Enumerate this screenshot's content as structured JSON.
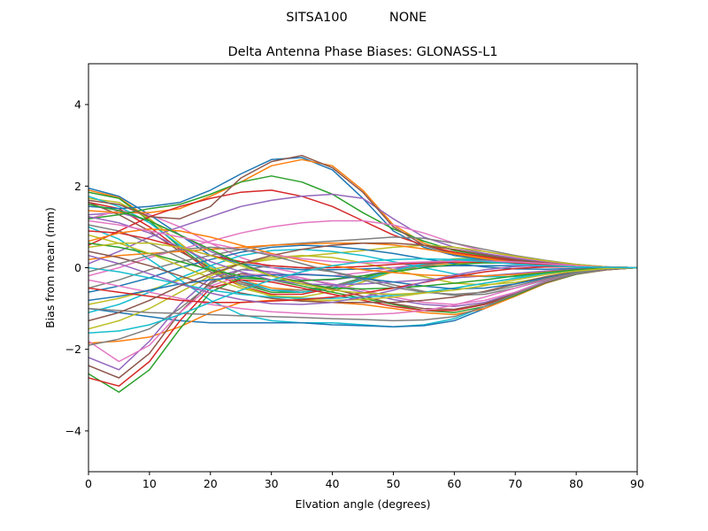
{
  "figure": {
    "suptitle_left": "SITSA100",
    "suptitle_right": "NONE"
  },
  "chart_data": {
    "type": "line",
    "title": "Delta Antenna Phase Biases: GLONASS-L1",
    "xlabel": "Elvation angle (degrees)",
    "ylabel": "Bias from mean (mm)",
    "xlim": [
      0,
      90
    ],
    "ylim": [
      -5,
      5
    ],
    "xticks": [
      0,
      10,
      20,
      30,
      40,
      50,
      60,
      70,
      80,
      90
    ],
    "yticks": [
      -4,
      -2,
      0,
      2,
      4
    ],
    "ytick_labels": [
      "−4",
      "−2",
      "0",
      "2",
      "4"
    ],
    "x": [
      0,
      5,
      10,
      15,
      20,
      25,
      30,
      35,
      40,
      45,
      50,
      55,
      60,
      65,
      70,
      75,
      80,
      85,
      90
    ],
    "grid": false,
    "legend": false,
    "colors": [
      "#1f77b4",
      "#ff7f0e",
      "#2ca02c",
      "#d62728",
      "#9467bd",
      "#8c564b",
      "#e377c2",
      "#7f7f7f",
      "#bcbd22",
      "#17becf"
    ],
    "series": [
      {
        "values": [
          1.95,
          1.75,
          1.3,
          0.8,
          0.3,
          0.1,
          0.0,
          -0.05,
          -0.05,
          -0.03,
          0.0,
          0.03,
          0.05,
          0.05,
          0.05,
          0.03,
          0.02,
          0.01,
          0.0
        ]
      },
      {
        "values": [
          1.9,
          1.72,
          1.2,
          0.6,
          0.05,
          -0.3,
          -0.5,
          -0.55,
          -0.45,
          -0.3,
          -0.1,
          0.05,
          0.12,
          0.14,
          0.12,
          0.08,
          0.04,
          0.01,
          0.0
        ]
      },
      {
        "values": [
          1.85,
          1.7,
          1.15,
          0.5,
          -0.05,
          -0.4,
          -0.6,
          -0.6,
          -0.45,
          -0.25,
          -0.05,
          0.1,
          0.2,
          0.22,
          0.2,
          0.13,
          0.06,
          0.02,
          0.0
        ]
      },
      {
        "values": [
          1.6,
          1.45,
          1.0,
          0.45,
          -0.1,
          -0.45,
          -0.65,
          -0.65,
          -0.5,
          -0.3,
          -0.1,
          0.1,
          0.2,
          0.22,
          0.2,
          0.14,
          0.07,
          0.02,
          0.0
        ]
      },
      {
        "values": [
          1.3,
          1.35,
          1.15,
          0.8,
          0.4,
          0.1,
          -0.15,
          -0.3,
          -0.3,
          -0.2,
          -0.05,
          0.1,
          0.18,
          0.2,
          0.18,
          0.12,
          0.06,
          0.02,
          0.0
        ]
      },
      {
        "values": [
          1.6,
          1.3,
          0.9,
          0.4,
          0.0,
          -0.35,
          -0.55,
          -0.6,
          -0.5,
          -0.3,
          -0.1,
          0.08,
          0.18,
          0.2,
          0.17,
          0.12,
          0.06,
          0.02,
          0.0
        ]
      },
      {
        "values": [
          1.2,
          1.4,
          1.3,
          1.0,
          0.6,
          0.25,
          0.0,
          -0.15,
          -0.2,
          -0.12,
          0.0,
          0.12,
          0.2,
          0.22,
          0.19,
          0.13,
          0.06,
          0.02,
          0.0
        ]
      },
      {
        "values": [
          1.05,
          0.9,
          0.6,
          0.25,
          -0.1,
          -0.4,
          -0.55,
          -0.55,
          -0.45,
          -0.28,
          -0.1,
          0.06,
          0.15,
          0.18,
          0.16,
          0.11,
          0.05,
          0.02,
          0.0
        ]
      },
      {
        "values": [
          1.7,
          1.6,
          1.2,
          0.6,
          0.0,
          -0.45,
          -0.7,
          -0.72,
          -0.58,
          -0.35,
          -0.1,
          0.1,
          0.22,
          0.25,
          0.22,
          0.15,
          0.07,
          0.02,
          0.0
        ]
      },
      {
        "values": [
          1.75,
          1.5,
          1.1,
          0.55,
          0.05,
          -0.3,
          -0.55,
          -0.6,
          -0.5,
          -0.3,
          -0.08,
          0.1,
          0.2,
          0.22,
          0.19,
          0.13,
          0.06,
          0.02,
          0.0
        ]
      },
      {
        "values": [
          1.5,
          1.45,
          1.5,
          1.6,
          1.9,
          2.3,
          2.65,
          2.7,
          2.4,
          1.7,
          0.9,
          0.5,
          0.3,
          0.2,
          0.15,
          0.1,
          0.05,
          0.02,
          0.0
        ]
      },
      {
        "values": [
          1.4,
          1.35,
          1.35,
          1.45,
          1.75,
          2.1,
          2.5,
          2.65,
          2.5,
          1.9,
          1.05,
          0.6,
          0.35,
          0.25,
          0.18,
          0.12,
          0.06,
          0.02,
          0.0
        ]
      },
      {
        "values": [
          1.2,
          1.3,
          1.45,
          1.55,
          1.8,
          2.1,
          2.25,
          2.1,
          1.8,
          1.35,
          0.95,
          0.65,
          0.42,
          0.3,
          0.2,
          0.13,
          0.06,
          0.02,
          0.0
        ]
      },
      {
        "values": [
          0.55,
          0.9,
          1.25,
          1.5,
          1.7,
          1.85,
          1.9,
          1.75,
          1.5,
          1.15,
          0.8,
          0.55,
          0.38,
          0.27,
          0.18,
          0.12,
          0.06,
          0.02,
          0.0
        ]
      },
      {
        "values": [
          0.1,
          0.4,
          0.75,
          1.0,
          1.25,
          1.5,
          1.65,
          1.75,
          1.8,
          1.7,
          1.2,
          0.75,
          0.5,
          0.35,
          0.23,
          0.15,
          0.07,
          0.02,
          0.0
        ]
      },
      {
        "values": [
          1.65,
          1.55,
          1.25,
          1.2,
          1.5,
          2.2,
          2.6,
          2.75,
          2.45,
          1.85,
          1.0,
          0.55,
          0.33,
          0.22,
          0.16,
          0.11,
          0.05,
          0.02,
          0.0
        ]
      },
      {
        "values": [
          -0.2,
          0.0,
          0.25,
          0.45,
          0.65,
          0.85,
          1.0,
          1.1,
          1.15,
          1.15,
          1.05,
          0.85,
          0.6,
          0.4,
          0.26,
          0.16,
          0.08,
          0.02,
          0.0
        ]
      },
      {
        "values": [
          -0.5,
          -0.3,
          -0.05,
          0.15,
          0.3,
          0.45,
          0.55,
          0.6,
          0.65,
          0.7,
          0.75,
          0.72,
          0.6,
          0.45,
          0.3,
          0.18,
          0.08,
          0.02,
          0.0
        ]
      },
      {
        "values": [
          -0.9,
          -0.75,
          -0.55,
          -0.3,
          -0.05,
          0.1,
          0.2,
          0.28,
          0.35,
          0.42,
          0.5,
          0.55,
          0.5,
          0.4,
          0.28,
          0.17,
          0.08,
          0.02,
          0.0
        ]
      },
      {
        "values": [
          1.0,
          0.7,
          0.2,
          -0.3,
          -0.8,
          -1.15,
          -1.3,
          -1.35,
          -1.35,
          -1.4,
          -1.45,
          -1.4,
          -1.25,
          -0.95,
          -0.6,
          -0.32,
          -0.14,
          -0.04,
          0.0
        ]
      },
      {
        "values": [
          -1.0,
          -1.1,
          -1.2,
          -1.3,
          -1.35,
          -1.35,
          -1.35,
          -1.35,
          -1.4,
          -1.42,
          -1.45,
          -1.42,
          -1.3,
          -1.0,
          -0.65,
          -0.35,
          -0.15,
          -0.04,
          0.0
        ]
      },
      {
        "values": [
          -1.85,
          -1.8,
          -1.7,
          -1.45,
          -1.1,
          -0.85,
          -0.8,
          -0.8,
          -0.85,
          -0.9,
          -1.0,
          -1.1,
          -1.15,
          -1.0,
          -0.7,
          -0.38,
          -0.16,
          -0.05,
          0.0
        ]
      },
      {
        "values": [
          -2.6,
          -3.05,
          -2.5,
          -1.5,
          -0.6,
          -0.25,
          -0.3,
          -0.45,
          -0.6,
          -0.75,
          -0.9,
          -1.05,
          -1.1,
          -0.95,
          -0.68,
          -0.37,
          -0.16,
          -0.05,
          0.0
        ]
      },
      {
        "values": [
          -2.7,
          -2.9,
          -2.3,
          -1.3,
          -0.5,
          -0.3,
          -0.35,
          -0.5,
          -0.65,
          -0.8,
          -0.95,
          -1.05,
          -1.05,
          -0.9,
          -0.65,
          -0.36,
          -0.15,
          -0.05,
          0.0
        ]
      },
      {
        "values": [
          -2.2,
          -2.5,
          -1.8,
          -0.9,
          -0.25,
          -0.05,
          -0.1,
          -0.25,
          -0.42,
          -0.6,
          -0.78,
          -0.9,
          -0.95,
          -0.85,
          -0.62,
          -0.34,
          -0.15,
          -0.04,
          0.0
        ]
      },
      {
        "values": [
          -2.4,
          -2.7,
          -2.1,
          -1.1,
          -0.35,
          -0.15,
          -0.2,
          -0.35,
          -0.52,
          -0.7,
          -0.88,
          -1.0,
          -1.02,
          -0.88,
          -0.64,
          -0.35,
          -0.15,
          -0.05,
          0.0
        ]
      },
      {
        "values": [
          -1.8,
          -2.3,
          -1.9,
          -1.1,
          -0.45,
          -0.2,
          -0.15,
          -0.25,
          -0.4,
          -0.55,
          -0.72,
          -0.85,
          -0.9,
          -0.8,
          -0.6,
          -0.33,
          -0.14,
          -0.04,
          0.0
        ]
      },
      {
        "values": [
          -1.9,
          -1.75,
          -1.5,
          -1.0,
          -0.4,
          -0.05,
          0.05,
          0.0,
          -0.1,
          -0.25,
          -0.42,
          -0.58,
          -0.68,
          -0.65,
          -0.5,
          -0.3,
          -0.13,
          -0.04,
          0.0
        ]
      },
      {
        "values": [
          -1.5,
          -1.3,
          -1.0,
          -0.6,
          -0.2,
          0.1,
          0.25,
          0.3,
          0.25,
          0.12,
          -0.05,
          -0.22,
          -0.38,
          -0.42,
          -0.36,
          -0.23,
          -0.1,
          -0.03,
          0.0
        ]
      },
      {
        "values": [
          -1.1,
          -0.9,
          -0.6,
          -0.25,
          0.05,
          0.3,
          0.42,
          0.45,
          0.4,
          0.3,
          0.15,
          0.0,
          -0.15,
          -0.22,
          -0.22,
          -0.15,
          -0.07,
          -0.02,
          0.0
        ]
      },
      {
        "values": [
          -0.6,
          -0.45,
          -0.25,
          0.0,
          0.2,
          0.38,
          0.5,
          0.55,
          0.52,
          0.45,
          0.35,
          0.22,
          0.1,
          0.02,
          -0.03,
          -0.04,
          -0.02,
          -0.01,
          0.0
        ]
      },
      {
        "values": [
          0.2,
          0.3,
          0.35,
          0.4,
          0.45,
          0.5,
          0.55,
          0.58,
          0.6,
          0.6,
          0.56,
          0.46,
          0.34,
          0.22,
          0.13,
          0.07,
          0.03,
          0.01,
          0.0
        ]
      },
      {
        "values": [
          0.6,
          0.5,
          0.35,
          0.15,
          -0.05,
          -0.2,
          -0.3,
          -0.32,
          -0.28,
          -0.2,
          -0.1,
          0.0,
          0.08,
          0.12,
          0.11,
          0.08,
          0.04,
          0.01,
          0.0
        ]
      },
      {
        "values": [
          0.9,
          0.85,
          0.7,
          0.5,
          0.3,
          0.15,
          0.05,
          0.0,
          0.0,
          0.03,
          0.08,
          0.12,
          0.14,
          0.14,
          0.12,
          0.08,
          0.04,
          0.01,
          0.0
        ]
      },
      {
        "values": [
          1.25,
          1.1,
          0.85,
          0.5,
          0.15,
          -0.1,
          -0.3,
          -0.4,
          -0.42,
          -0.4,
          -0.35,
          -0.3,
          -0.25,
          -0.2,
          -0.14,
          -0.08,
          -0.04,
          -0.01,
          0.0
        ]
      },
      {
        "values": [
          0.4,
          0.25,
          0.05,
          -0.2,
          -0.45,
          -0.62,
          -0.75,
          -0.82,
          -0.85,
          -0.85,
          -0.85,
          -0.8,
          -0.72,
          -0.58,
          -0.4,
          -0.22,
          -0.1,
          -0.03,
          0.0
        ]
      },
      {
        "values": [
          -0.3,
          -0.45,
          -0.6,
          -0.75,
          -0.9,
          -1.0,
          -1.08,
          -1.12,
          -1.15,
          -1.15,
          -1.12,
          -1.05,
          -0.92,
          -0.72,
          -0.5,
          -0.28,
          -0.12,
          -0.03,
          0.0
        ]
      },
      {
        "values": [
          -1.0,
          -1.05,
          -1.1,
          -1.12,
          -1.15,
          -1.18,
          -1.2,
          -1.22,
          -1.25,
          -1.27,
          -1.3,
          -1.28,
          -1.2,
          -0.95,
          -0.65,
          -0.35,
          -0.15,
          -0.04,
          0.0
        ]
      },
      {
        "values": [
          0.8,
          0.6,
          0.35,
          0.05,
          -0.25,
          -0.5,
          -0.68,
          -0.78,
          -0.8,
          -0.78,
          -0.72,
          -0.62,
          -0.5,
          -0.38,
          -0.26,
          -0.15,
          -0.07,
          -0.02,
          0.0
        ]
      },
      {
        "values": [
          0.0,
          -0.1,
          -0.25,
          -0.4,
          -0.55,
          -0.65,
          -0.72,
          -0.75,
          -0.75,
          -0.72,
          -0.68,
          -0.6,
          -0.5,
          -0.38,
          -0.26,
          -0.15,
          -0.07,
          -0.02,
          0.0
        ]
      },
      {
        "values": [
          -0.8,
          -0.7,
          -0.55,
          -0.4,
          -0.3,
          -0.22,
          -0.18,
          -0.17,
          -0.2,
          -0.26,
          -0.35,
          -0.45,
          -0.52,
          -0.5,
          -0.4,
          -0.25,
          -0.11,
          -0.03,
          0.0
        ]
      },
      {
        "values": [
          0.65,
          0.85,
          0.95,
          0.9,
          0.75,
          0.55,
          0.35,
          0.18,
          0.05,
          -0.05,
          -0.12,
          -0.18,
          -0.2,
          -0.2,
          -0.17,
          -0.11,
          -0.05,
          -0.01,
          0.0
        ]
      },
      {
        "values": [
          1.55,
          1.4,
          1.15,
          0.8,
          0.45,
          0.1,
          -0.2,
          -0.4,
          -0.5,
          -0.52,
          -0.5,
          -0.45,
          -0.38,
          -0.3,
          -0.2,
          -0.12,
          -0.05,
          -0.01,
          0.0
        ]
      },
      {
        "values": [
          -0.5,
          -0.6,
          -0.7,
          -0.8,
          -0.85,
          -0.85,
          -0.82,
          -0.78,
          -0.72,
          -0.62,
          -0.5,
          -0.36,
          -0.22,
          -0.1,
          -0.02,
          0.02,
          0.02,
          0.01,
          0.0
        ]
      },
      {
        "values": [
          0.3,
          0.1,
          -0.15,
          -0.4,
          -0.62,
          -0.78,
          -0.88,
          -0.9,
          -0.85,
          -0.72,
          -0.55,
          -0.35,
          -0.18,
          -0.05,
          0.03,
          0.05,
          0.03,
          0.01,
          0.0
        ]
      },
      {
        "values": [
          -1.3,
          -1.1,
          -0.8,
          -0.45,
          -0.15,
          0.1,
          0.3,
          0.45,
          0.55,
          0.6,
          0.6,
          0.55,
          0.45,
          0.32,
          0.2,
          0.1,
          0.04,
          0.01,
          0.0
        ]
      },
      {
        "values": [
          1.15,
          1.05,
          0.9,
          0.75,
          0.6,
          0.45,
          0.32,
          0.22,
          0.15,
          0.12,
          0.12,
          0.14,
          0.16,
          0.16,
          0.14,
          0.1,
          0.05,
          0.01,
          0.0
        ]
      },
      {
        "values": [
          -0.1,
          0.1,
          0.3,
          0.45,
          0.5,
          0.45,
          0.3,
          0.1,
          -0.1,
          -0.3,
          -0.48,
          -0.6,
          -0.65,
          -0.6,
          -0.45,
          -0.27,
          -0.12,
          -0.03,
          0.0
        ]
      },
      {
        "values": [
          0.5,
          0.6,
          0.6,
          0.5,
          0.3,
          0.05,
          -0.2,
          -0.4,
          -0.55,
          -0.62,
          -0.65,
          -0.62,
          -0.55,
          -0.44,
          -0.3,
          -0.17,
          -0.08,
          -0.02,
          0.0
        ]
      },
      {
        "values": [
          -1.6,
          -1.55,
          -1.4,
          -1.15,
          -0.85,
          -0.55,
          -0.3,
          -0.1,
          0.05,
          0.15,
          0.2,
          0.22,
          0.2,
          0.15,
          0.09,
          0.05,
          0.02,
          0.01,
          0.0
        ]
      }
    ]
  }
}
